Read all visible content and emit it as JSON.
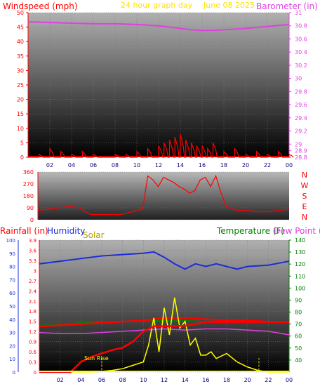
{
  "header": {
    "windspeed_label": "Windspeed (mph)",
    "period_label": "24 hour graph day",
    "date_label": "June 08 2025",
    "barometer_label": "Barometer (in)"
  },
  "direction_labels": [
    "N",
    "W",
    "S",
    "E",
    "N"
  ],
  "bottom_header": {
    "rainfall_label": "Rainfall (in)",
    "humidity_label": "Humidity",
    "solar_label": "Solar",
    "temperature_label": "Temperature (F)",
    "dewpoint_label": "Dew Point ("
  },
  "sunrise_label": "Sun Rise",
  "colors": {
    "wind": "#ff0000",
    "gust_minor": "#008000",
    "barometer": "#e040e0",
    "humidity": "#1a2cdc",
    "solar": "#ffff00",
    "rain": "#ff0000",
    "temperature": "#ff0000",
    "dewpoint": "#008000",
    "plot_top": "#a8a8a8",
    "plot_bottom": "#000000"
  },
  "chart_data": [
    {
      "type": "line",
      "name": "wind-barometer",
      "x_ticks": [
        "02",
        "04",
        "06",
        "08",
        "10",
        "12",
        "14",
        "16",
        "18",
        "20",
        "22",
        "00"
      ],
      "y_left": {
        "label": "Windspeed (mph)",
        "range": [
          0,
          50
        ],
        "ticks": [
          0,
          5,
          10,
          15,
          20,
          25,
          30,
          35,
          40,
          45,
          50
        ]
      },
      "y_right": {
        "label": "Barometer (in)",
        "range": [
          28.8,
          31.0
        ],
        "ticks": [
          "28.8",
          "28.9",
          "29",
          "29.2",
          "29.4",
          "29.6",
          "29.8",
          "30",
          "30.2",
          "30.4",
          "30.6",
          "30.8",
          "31"
        ]
      },
      "barometer": {
        "x": [
          0,
          2,
          4,
          6,
          8,
          10,
          12,
          13,
          14,
          15,
          16,
          17,
          18,
          20,
          22,
          24
        ],
        "y": [
          30.86,
          30.85,
          30.84,
          30.83,
          30.83,
          30.82,
          30.8,
          30.78,
          30.76,
          30.74,
          30.73,
          30.73,
          30.74,
          30.76,
          30.79,
          30.82
        ]
      },
      "windspeed": {
        "x": [
          0,
          1,
          2,
          3,
          4,
          5,
          6,
          7,
          8,
          9,
          10,
          11,
          12,
          12.5,
          13,
          13.5,
          14,
          14.5,
          15,
          15.5,
          16,
          16.5,
          17,
          18,
          19,
          20,
          21,
          22,
          23,
          24
        ],
        "y": [
          0,
          1,
          3,
          2,
          1,
          2,
          1,
          0,
          1,
          1,
          2,
          3,
          4,
          5,
          6,
          7,
          8,
          6,
          5,
          4,
          4,
          3,
          5,
          2,
          3,
          1,
          2,
          1,
          2,
          1
        ]
      }
    },
    {
      "type": "line",
      "name": "wind-direction",
      "x_ticks": [
        "02",
        "04",
        "06",
        "08",
        "10",
        "12",
        "14",
        "16",
        "18",
        "20",
        "22",
        "00"
      ],
      "y_left": {
        "range": [
          0,
          360
        ],
        "ticks": [
          0,
          90,
          180,
          270,
          360
        ]
      },
      "direction": {
        "x": [
          0,
          1,
          2,
          3,
          4,
          4.5,
          5,
          6,
          7,
          8,
          8.5,
          9,
          10,
          10.5,
          11,
          11.5,
          12,
          12.5,
          13,
          13.5,
          14,
          14.5,
          15,
          15.5,
          16,
          16.5,
          17,
          17.5,
          18,
          19,
          20,
          21,
          22,
          23,
          24
        ],
        "y": [
          70,
          80,
          90,
          100,
          90,
          60,
          40,
          40,
          40,
          40,
          50,
          60,
          80,
          330,
          300,
          250,
          320,
          300,
          280,
          250,
          230,
          200,
          220,
          300,
          320,
          250,
          330,
          200,
          100,
          70,
          70,
          60,
          60,
          70,
          80
        ]
      }
    },
    {
      "type": "line",
      "name": "rain-humidity-solar-temperature",
      "x_ticks": [
        "02",
        "04",
        "06",
        "08",
        "10",
        "12",
        "14",
        "16",
        "18",
        "20",
        "22",
        "00"
      ],
      "y_rain": {
        "label": "Rainfall (in)",
        "range": [
          0,
          3.9
        ],
        "ticks": [
          "0",
          "0.3",
          "0.6",
          "0.9",
          "1.2",
          "1.5",
          "1.8",
          "2.1",
          "2.4",
          "2.7",
          "3",
          "3.3",
          "3.6",
          "3.9"
        ]
      },
      "y_humidity": {
        "label": "Humidity",
        "range": [
          0,
          100
        ],
        "ticks": [
          0,
          10,
          20,
          30,
          40,
          50,
          60,
          70,
          80,
          90,
          100
        ]
      },
      "y_temperature": {
        "label": "Temperature (F)",
        "range": [
          30,
          140
        ],
        "ticks": [
          40,
          50,
          60,
          70,
          80,
          90,
          100,
          110,
          120,
          130,
          140
        ]
      },
      "humidity": {
        "x": [
          0,
          2,
          4,
          6,
          8,
          10,
          11,
          12,
          13,
          14,
          15,
          16,
          17,
          18,
          19,
          20,
          22,
          24
        ],
        "y": [
          82,
          84,
          86,
          88,
          89,
          90,
          91,
          87,
          82,
          78,
          82,
          80,
          82,
          80,
          78,
          80,
          81,
          84
        ]
      },
      "temperature": {
        "x": [
          0,
          2,
          4,
          6,
          8,
          10,
          11,
          12,
          14,
          16,
          18,
          20,
          22,
          24
        ],
        "y": [
          68,
          69,
          70,
          71,
          72,
          73,
          74,
          75,
          75,
          74,
          73,
          73,
          72,
          72
        ]
      },
      "dewpoint": {
        "x": [
          0,
          2,
          4,
          6,
          8,
          10,
          12,
          14,
          16,
          18,
          20,
          22,
          24
        ],
        "y": [
          70,
          70,
          71,
          72,
          72,
          73,
          73,
          73,
          72,
          72,
          72,
          72,
          72
        ]
      },
      "heat_index": {
        "x": [
          0,
          2,
          4,
          6,
          8,
          10,
          12,
          14,
          16,
          18,
          20,
          22,
          24
        ],
        "y": [
          63,
          62,
          62,
          63,
          64,
          65,
          66,
          65,
          66,
          66,
          65,
          64,
          61
        ]
      },
      "rain": {
        "x": [
          0,
          3,
          4,
          5,
          6,
          7,
          8,
          9,
          10,
          11,
          12,
          14,
          15,
          16,
          17,
          18,
          20,
          22,
          24
        ],
        "y": [
          0,
          0,
          0.3,
          0.45,
          0.55,
          0.65,
          0.72,
          0.9,
          1.2,
          1.35,
          1.35,
          1.37,
          1.42,
          1.48,
          1.48,
          1.48,
          1.48,
          1.48,
          1.48
        ]
      },
      "solar": {
        "x": [
          0,
          5,
          6,
          7,
          8,
          9,
          10,
          10.5,
          11,
          11.5,
          12,
          12.5,
          13,
          13.5,
          14,
          14.5,
          15,
          15.5,
          16,
          16.5,
          17,
          18,
          19,
          20,
          21,
          22,
          24
        ],
        "y": [
          0,
          0,
          0.02,
          0.05,
          0.1,
          0.2,
          0.3,
          0.8,
          1.6,
          0.6,
          1.9,
          1.1,
          2.2,
          1.3,
          1.5,
          0.8,
          1.0,
          0.5,
          0.5,
          0.6,
          0.4,
          0.55,
          0.3,
          0.15,
          0.05,
          0,
          0
        ]
      },
      "sunrise_x": 6,
      "sunset_x": 21.1
    }
  ]
}
